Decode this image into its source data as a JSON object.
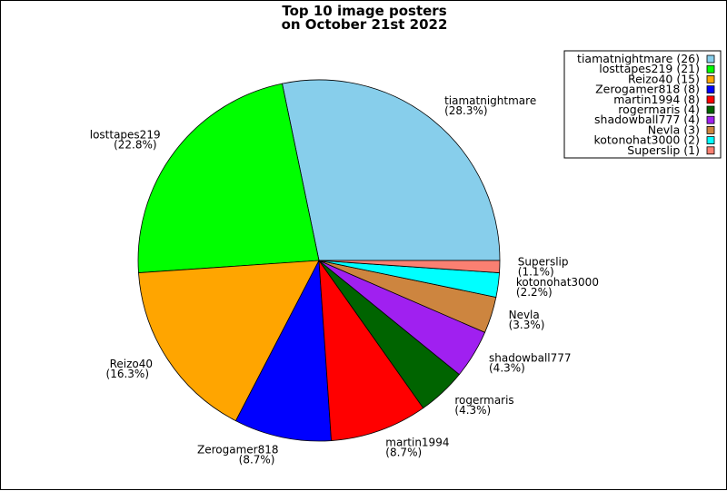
{
  "chart_data": {
    "type": "pie",
    "title_lines": [
      "Top 10 image posters",
      "on October 21st 2022"
    ],
    "slices": [
      {
        "name": "tiamatnightmare",
        "value": 26,
        "percent": "28.3%",
        "legend": "tiamatnightmare (26)",
        "color": "#87ceeb"
      },
      {
        "name": "losttapes219",
        "value": 21,
        "percent": "22.8%",
        "legend": "losttapes219 (21)",
        "color": "#00ff00"
      },
      {
        "name": "Reizo40",
        "value": 15,
        "percent": "16.3%",
        "legend": "Reizo40 (15)",
        "color": "#ffa500"
      },
      {
        "name": "Zerogamer818",
        "value": 8,
        "percent": "8.7%",
        "legend": "Zerogamer818 (8)",
        "color": "#0000ff"
      },
      {
        "name": "martin1994",
        "value": 8,
        "percent": "8.7%",
        "legend": "martin1994 (8)",
        "color": "#ff0000"
      },
      {
        "name": "rogermaris",
        "value": 4,
        "percent": "4.3%",
        "legend": "rogermaris (4)",
        "color": "#006400"
      },
      {
        "name": "shadowball777",
        "value": 4,
        "percent": "4.3%",
        "legend": "shadowball777 (4)",
        "color": "#a020f0"
      },
      {
        "name": "Nevla",
        "value": 3,
        "percent": "3.3%",
        "legend": "Nevla (3)",
        "color": "#cd853f"
      },
      {
        "name": "kotonohat3000",
        "value": 2,
        "percent": "2.2%",
        "legend": "kotonohat3000 (2)",
        "color": "#00ffff"
      },
      {
        "name": "Superslip",
        "value": 1,
        "percent": "1.1%",
        "legend": "Superslip (1)",
        "color": "#fa8072"
      }
    ],
    "start_angle_deg": 0,
    "direction": "counterclockwise",
    "legend_position": "top-right"
  }
}
